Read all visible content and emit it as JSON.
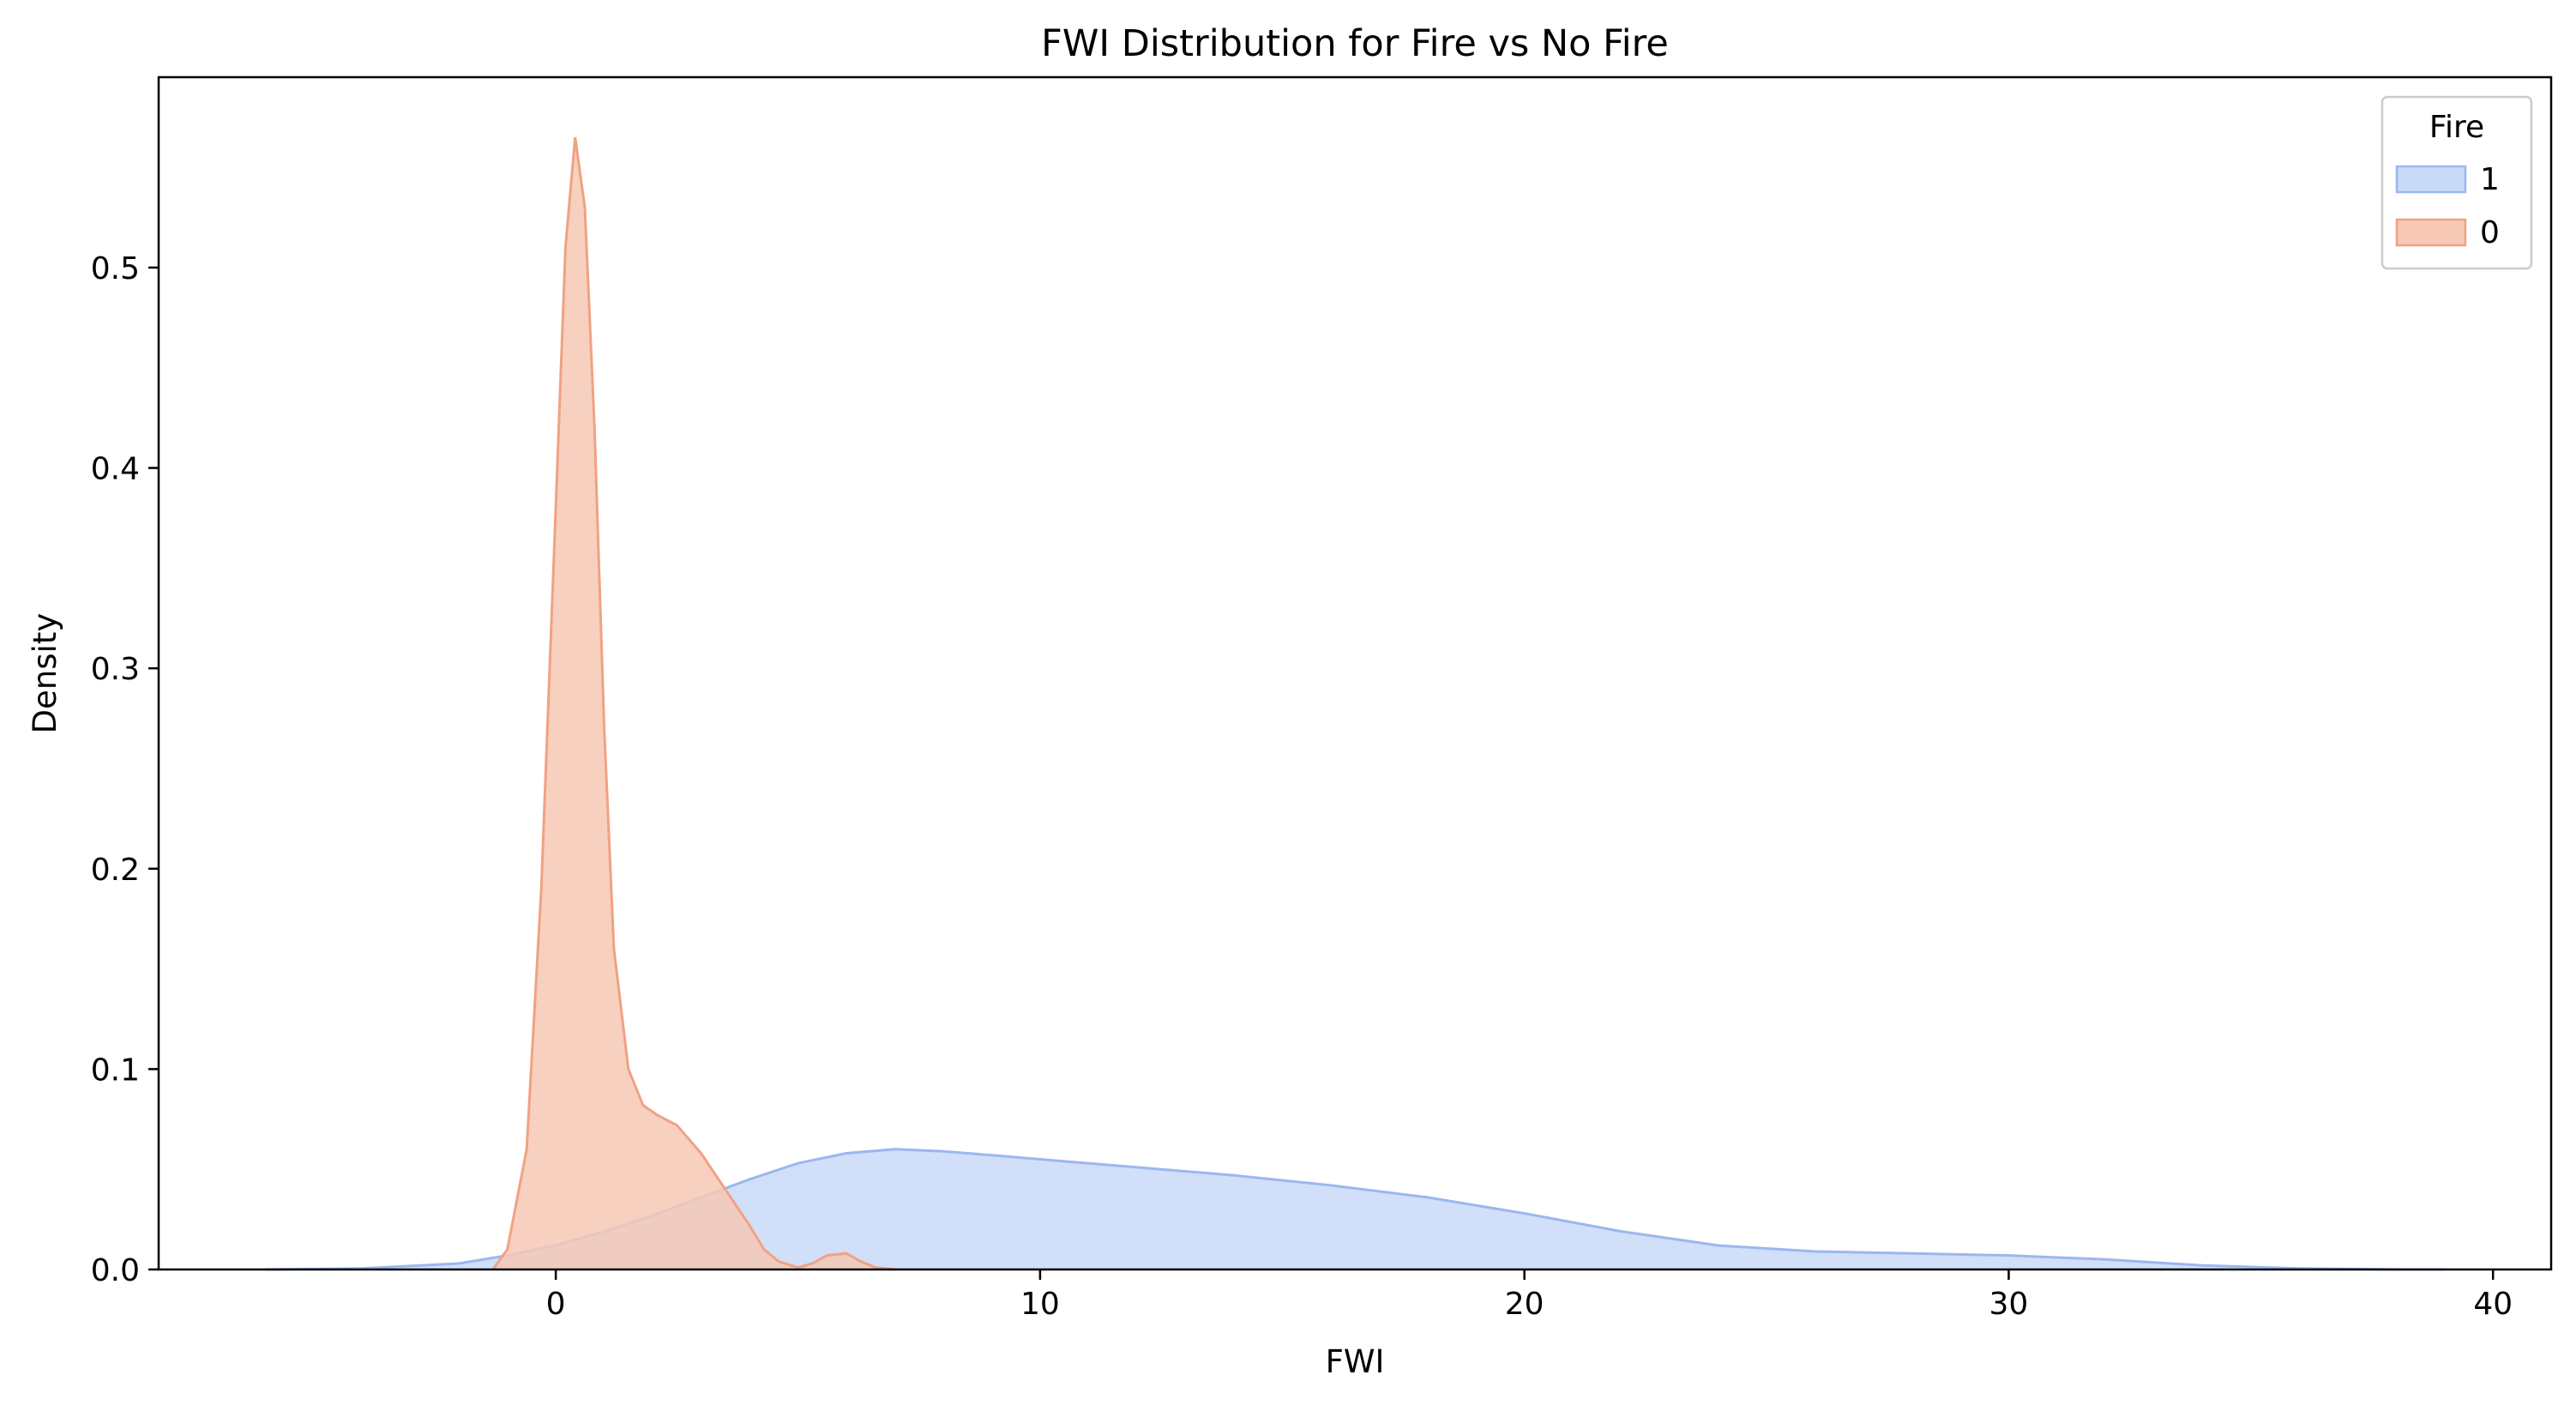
{
  "chart_data": {
    "type": "area",
    "title": "FWI Distribution for Fire vs No Fire",
    "xlabel": "FWI",
    "ylabel": "Density",
    "xlim": [
      -8.2,
      41.2
    ],
    "ylim": [
      0,
      0.595
    ],
    "xticks": [
      0,
      10,
      20,
      30,
      40
    ],
    "yticks": [
      0.0,
      0.1,
      0.2,
      0.3,
      0.4,
      0.5
    ],
    "xtick_labels": [
      "0",
      "10",
      "20",
      "30",
      "40"
    ],
    "ytick_labels": [
      "0.0",
      "0.1",
      "0.2",
      "0.3",
      "0.4",
      "0.5"
    ],
    "grid": false,
    "legend": {
      "title": "Fire",
      "placement": "top-right",
      "entries": [
        "1",
        "0"
      ]
    },
    "series": [
      {
        "name": "1",
        "color": "#9bb7f0",
        "fill": "#c9d9f8",
        "x": [
          -6,
          -4,
          -2,
          -1,
          0,
          1,
          2,
          3,
          4,
          5,
          6,
          7,
          8,
          9,
          10,
          12,
          14,
          16,
          18,
          20,
          22,
          24,
          26,
          28,
          30,
          32,
          34,
          36,
          38,
          39
        ],
        "y": [
          0.0,
          0.0005,
          0.003,
          0.007,
          0.012,
          0.019,
          0.027,
          0.036,
          0.045,
          0.053,
          0.058,
          0.06,
          0.059,
          0.057,
          0.055,
          0.051,
          0.047,
          0.042,
          0.036,
          0.028,
          0.019,
          0.012,
          0.009,
          0.008,
          0.007,
          0.005,
          0.002,
          0.0005,
          0.0,
          0.0
        ]
      },
      {
        "name": "0",
        "color": "#f0a283",
        "fill": "#f6c8b5",
        "x": [
          -1.3,
          -1.0,
          -0.6,
          -0.3,
          0.0,
          0.2,
          0.4,
          0.6,
          0.8,
          1.0,
          1.2,
          1.5,
          1.8,
          2.1,
          2.5,
          3.0,
          3.5,
          4.0,
          4.3,
          4.6,
          5.0,
          5.3,
          5.6,
          6.0,
          6.3,
          6.6,
          7.0
        ],
        "y": [
          0.0,
          0.01,
          0.06,
          0.19,
          0.38,
          0.51,
          0.565,
          0.53,
          0.42,
          0.27,
          0.16,
          0.1,
          0.082,
          0.077,
          0.072,
          0.058,
          0.04,
          0.022,
          0.01,
          0.004,
          0.001,
          0.003,
          0.007,
          0.008,
          0.004,
          0.001,
          0.0
        ]
      }
    ]
  }
}
